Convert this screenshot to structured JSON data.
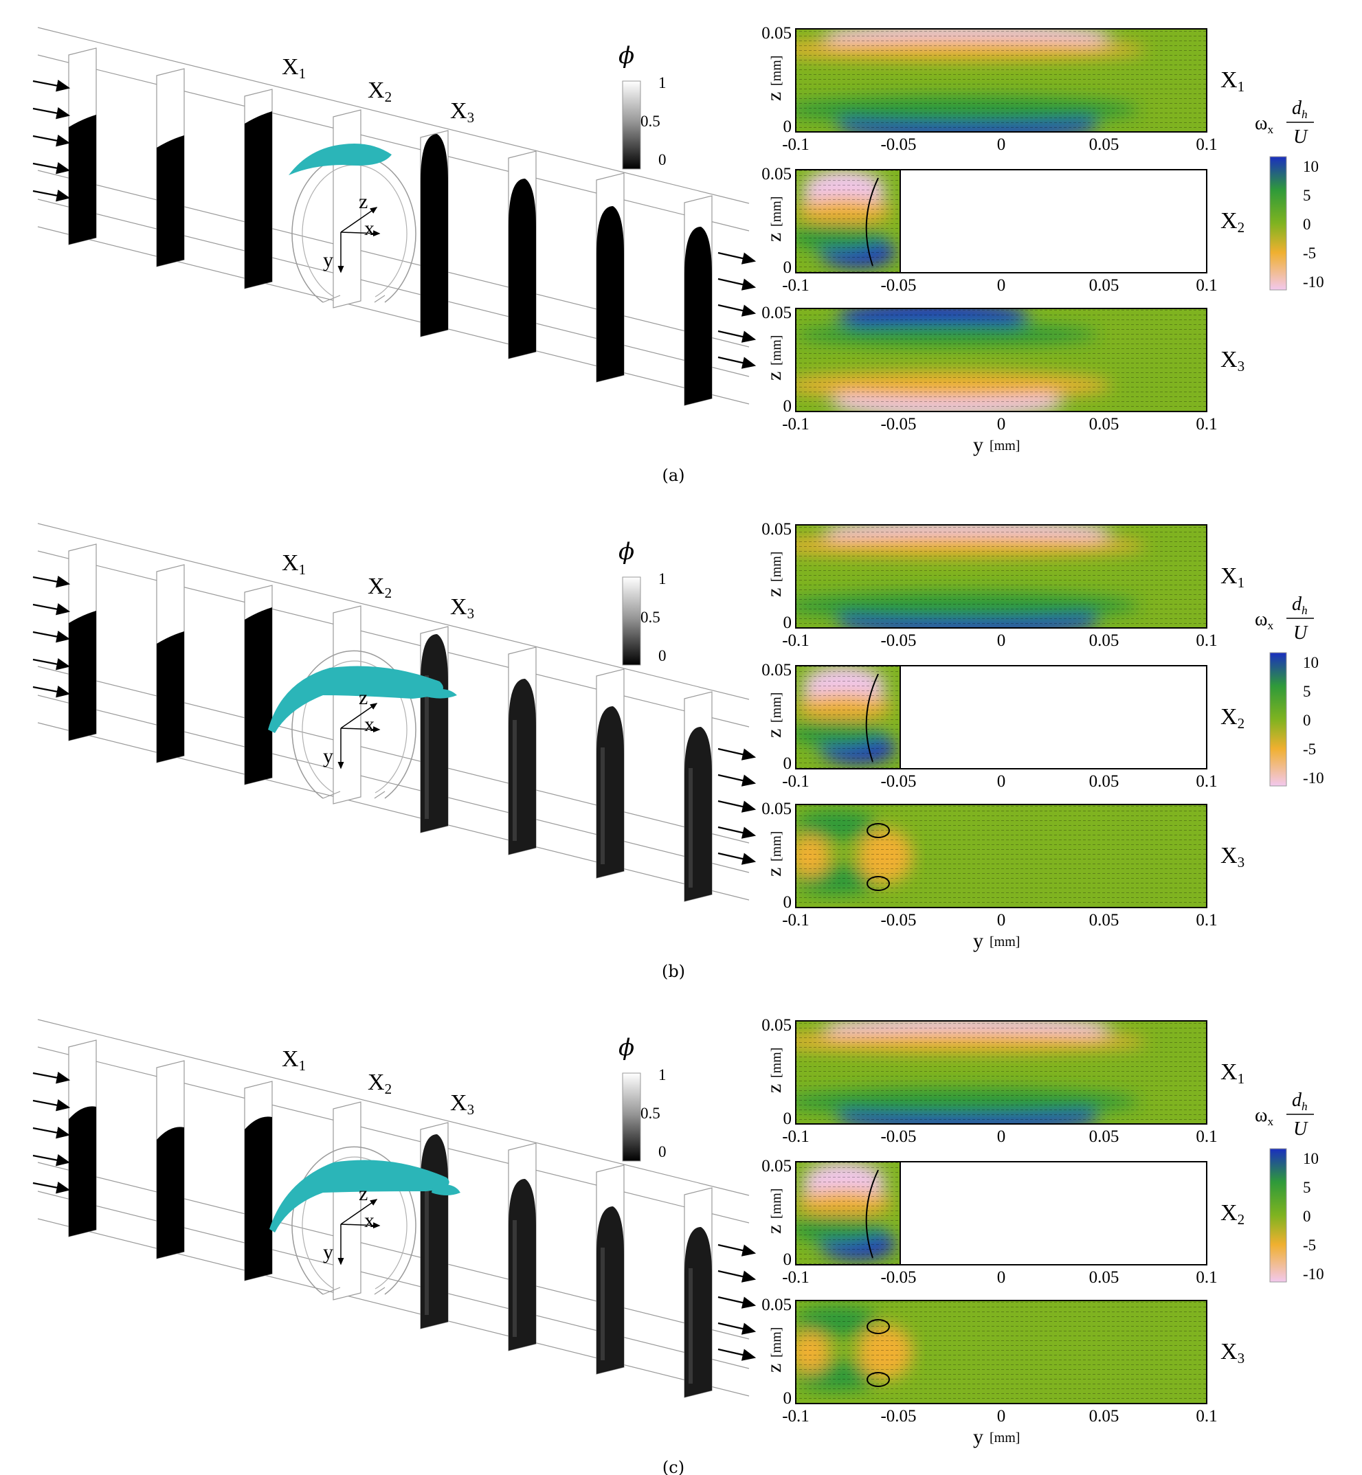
{
  "panels": [
    {
      "caption": "(a)",
      "phi_symbol": "ϕ",
      "phi_ticks": [
        "1",
        "0.5",
        "0"
      ],
      "station_labels": [
        {
          "base": "X",
          "sub": "1"
        },
        {
          "base": "X",
          "sub": "2"
        },
        {
          "base": "X",
          "sub": "3"
        }
      ],
      "axes_triad": {
        "z": "z",
        "x": "x",
        "y": "y"
      },
      "omega_label": {
        "symbol": "ω",
        "sub": "x",
        "num": "d",
        "num_sub": "h",
        "den": "U"
      },
      "omega_ticks": [
        "10",
        "5",
        "0",
        "-5",
        "-10"
      ],
      "plots": [
        {
          "label": {
            "base": "X",
            "sub": "1"
          },
          "xticks": [
            "-0.1",
            "-0.05",
            "0",
            "0.05",
            "0.1"
          ],
          "yticks": [
            "0.05",
            "0"
          ],
          "ylabel": "z",
          "yunit": "[mm]",
          "partial": false
        },
        {
          "label": {
            "base": "X",
            "sub": "2"
          },
          "xticks": [
            "-0.1",
            "-0.05",
            "0",
            "0.05",
            "0.1"
          ],
          "yticks": [
            "0.05",
            "0"
          ],
          "ylabel": "z",
          "yunit": "[mm]",
          "partial": true
        },
        {
          "label": {
            "base": "X",
            "sub": "3"
          },
          "xticks": [
            "-0.1",
            "-0.05",
            "0",
            "0.05",
            "0.1"
          ],
          "yticks": [
            "0.05",
            "0"
          ],
          "ylabel": "z",
          "yunit": "[mm]",
          "partial": false,
          "xlabel": "y",
          "xunit": "[mm]"
        }
      ]
    },
    {
      "caption": "(b)",
      "phi_symbol": "ϕ",
      "phi_ticks": [
        "1",
        "0.5",
        "0"
      ],
      "station_labels": [
        {
          "base": "X",
          "sub": "1"
        },
        {
          "base": "X",
          "sub": "2"
        },
        {
          "base": "X",
          "sub": "3"
        }
      ],
      "axes_triad": {
        "z": "z",
        "x": "x",
        "y": "y"
      },
      "omega_label": {
        "symbol": "ω",
        "sub": "x",
        "num": "d",
        "num_sub": "h",
        "den": "U"
      },
      "omega_ticks": [
        "10",
        "5",
        "0",
        "-5",
        "-10"
      ],
      "plots": [
        {
          "label": {
            "base": "X",
            "sub": "1"
          },
          "xticks": [
            "-0.1",
            "-0.05",
            "0",
            "0.05",
            "0.1"
          ],
          "yticks": [
            "0.05",
            "0"
          ],
          "ylabel": "z",
          "yunit": "[mm]",
          "partial": false
        },
        {
          "label": {
            "base": "X",
            "sub": "2"
          },
          "xticks": [
            "-0.1",
            "-0.05",
            "0",
            "0.05",
            "0.1"
          ],
          "yticks": [
            "0.05",
            "0"
          ],
          "ylabel": "z",
          "yunit": "[mm]",
          "partial": true
        },
        {
          "label": {
            "base": "X",
            "sub": "3"
          },
          "xticks": [
            "-0.1",
            "-0.05",
            "0",
            "0.05",
            "0.1"
          ],
          "yticks": [
            "0.05",
            "0"
          ],
          "ylabel": "z",
          "yunit": "[mm]",
          "partial": false,
          "xlabel": "y",
          "xunit": "[mm]"
        }
      ]
    },
    {
      "caption": "(c)",
      "phi_symbol": "ϕ",
      "phi_ticks": [
        "1",
        "0.5",
        "0"
      ],
      "station_labels": [
        {
          "base": "X",
          "sub": "1"
        },
        {
          "base": "X",
          "sub": "2"
        },
        {
          "base": "X",
          "sub": "3"
        }
      ],
      "axes_triad": {
        "z": "z",
        "x": "x",
        "y": "y"
      },
      "omega_label": {
        "symbol": "ω",
        "sub": "x",
        "num": "d",
        "num_sub": "h",
        "den": "U"
      },
      "omega_ticks": [
        "10",
        "5",
        "0",
        "-5",
        "-10"
      ],
      "plots": [
        {
          "label": {
            "base": "X",
            "sub": "1"
          },
          "xticks": [
            "-0.1",
            "-0.05",
            "0",
            "0.05",
            "0.1"
          ],
          "yticks": [
            "0.05",
            "0"
          ],
          "ylabel": "z",
          "yunit": "[mm]",
          "partial": false
        },
        {
          "label": {
            "base": "X",
            "sub": "2"
          },
          "xticks": [
            "-0.1",
            "-0.05",
            "0",
            "0.05",
            "0.1"
          ],
          "yticks": [
            "0.05",
            "0"
          ],
          "ylabel": "z",
          "yunit": "[mm]",
          "partial": true
        },
        {
          "label": {
            "base": "X",
            "sub": "3"
          },
          "xticks": [
            "-0.1",
            "-0.05",
            "0",
            "0.05",
            "0.1"
          ],
          "yticks": [
            "0.05",
            "0"
          ],
          "ylabel": "z",
          "yunit": "[mm]",
          "partial": false,
          "xlabel": "y",
          "xunit": "[mm]"
        }
      ]
    }
  ],
  "colors": {
    "vort_pos": "#1a2fbf",
    "vort_mid_pos": "#2f9a3a",
    "vort_zero": "#7fb320",
    "vort_mid_neg": "#f0b030",
    "vort_neg": "#f2c8ee",
    "droplet": "#2bb5b8",
    "phase_dark": "#000000",
    "phase_light": "#ffffff"
  }
}
